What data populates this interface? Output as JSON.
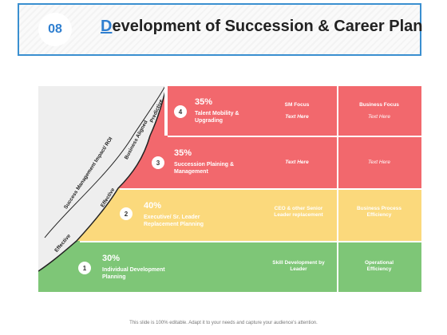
{
  "header": {
    "slide_number": "08",
    "title_first_letter": "D",
    "title_rest": "evelopment of Succession & Career Plan"
  },
  "curve": {
    "axis_label": "Success Management Impact/ ROI",
    "stage_labels": [
      "Effective",
      "Effective",
      "Business Aligned",
      "Predictive"
    ]
  },
  "levels": [
    {
      "number": "1",
      "percent": "30%",
      "label": "Individual Development Planning",
      "col2": "Skill Development by Leader",
      "col3": "Operational Efficiency"
    },
    {
      "number": "2",
      "percent": "40%",
      "label": "Executive/ Sr. Leader Replacement Planning",
      "col2": "CEO & other Senior Leader replacement",
      "col3": "Business Process Efficiency"
    },
    {
      "number": "3",
      "percent": "35%",
      "label": "Succession Plaining & Management",
      "col2": "Text Here",
      "col3": "Text Here"
    },
    {
      "number": "4",
      "percent": "35%",
      "label": "Talent Mobility & Upgrading",
      "col2_title": "SM Focus",
      "col2": "Text Here",
      "col3_title": "Business Focus",
      "col3": "Text Here"
    }
  ],
  "colors": {
    "green": "#7ec677",
    "yellow": "#fbd97c",
    "red": "#f2686d",
    "accent": "#2f7fd0"
  },
  "footer": "This slide is 100% editable. Adapt it to your needs and capture your audience's attention."
}
